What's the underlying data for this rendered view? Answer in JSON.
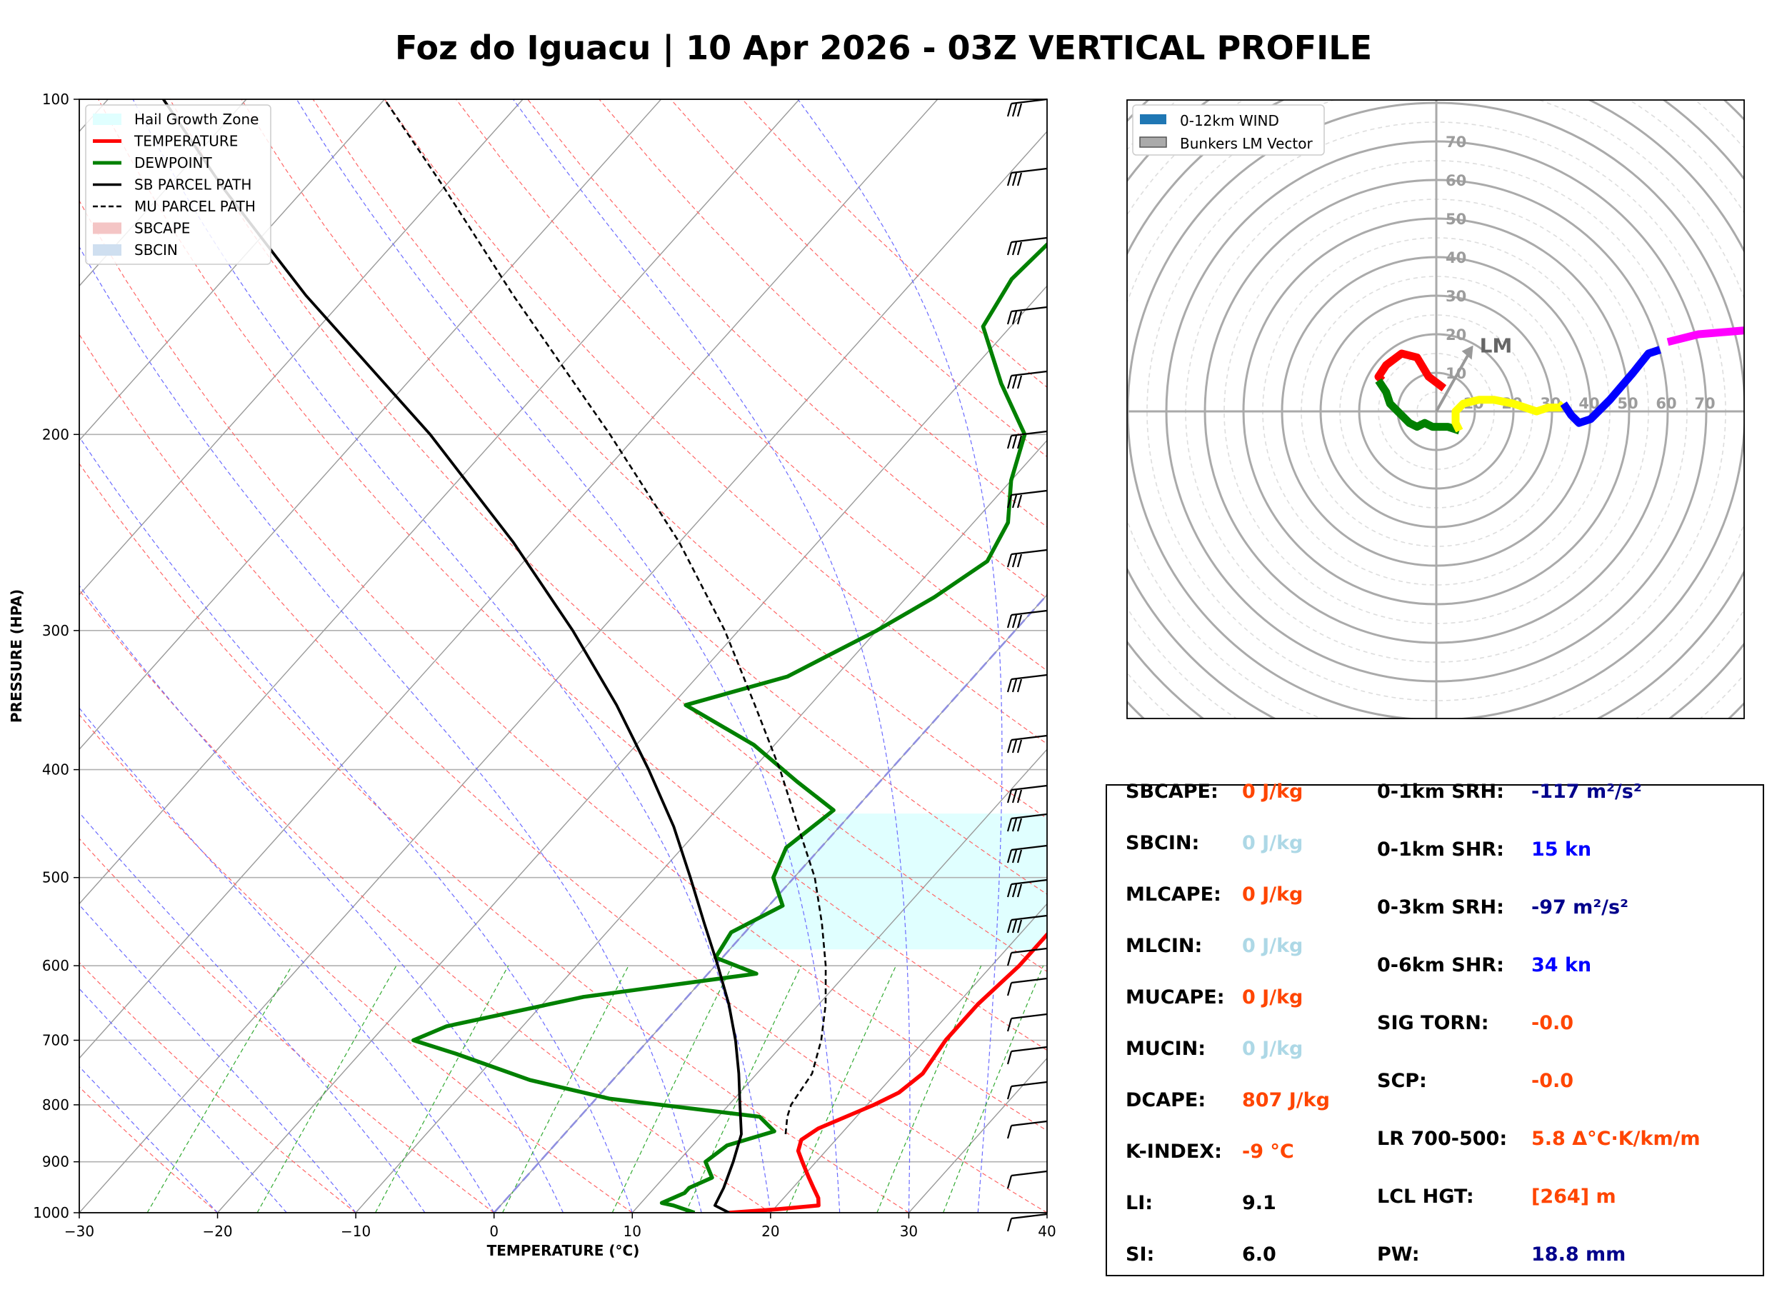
{
  "title": "Foz do Iguacu | 10 Apr 2026 - 03Z VERTICAL PROFILE",
  "colors": {
    "temperature": "#ff0000",
    "dewpoint": "#008000",
    "sb_parcel": "#000000",
    "mu_parcel": "#000000",
    "hail_zone": "#e0ffff",
    "dry_adiabat": "#ff6666",
    "moist_adiabat": "#6b6bff",
    "mixing_ratio": "#33aa33",
    "isotherm": "#9a9a9a",
    "freezing": "#8f8fe0",
    "stat_black": "#000000",
    "stat_orange": "#ff4500",
    "stat_lightblue": "#add8e6",
    "stat_navy": "#00008b",
    "stat_blue": "#0000ff"
  },
  "chart_data": [
    {
      "type": "line",
      "name": "skew-t",
      "xlabel": "TEMPERATURE (°C)",
      "ylabel": "PRESSURE (HPA)",
      "xlim": [
        -30,
        40
      ],
      "ylim": [
        1000,
        100
      ],
      "x_ticks": [
        "−30",
        "−20",
        "−10",
        "0",
        "10",
        "20",
        "30",
        "40"
      ],
      "y_ticks": [
        "100",
        "200",
        "300",
        "400",
        "500",
        "600",
        "700",
        "800",
        "900",
        "1000"
      ],
      "legend": [
        "Hail Growth Zone",
        "TEMPERATURE",
        "DEWPOINT",
        "SB PARCEL PATH",
        "MU PARCEL PATH",
        "SBCAPE",
        "SBCIN"
      ],
      "legend_position": "top-left",
      "hail_growth_zone": {
        "p_top": 438,
        "p_bottom": 580
      },
      "series": [
        {
          "name": "TEMPERATURE",
          "points": [
            [
              1000,
              17.0
            ],
            [
              993,
              20.2
            ],
            [
              985,
              23.0
            ],
            [
              970,
              22.5
            ],
            [
              950,
              21.5
            ],
            [
              930,
              20.5
            ],
            [
              900,
              19.0
            ],
            [
              880,
              18.0
            ],
            [
              860,
              17.5
            ],
            [
              840,
              18.0
            ],
            [
              800,
              20.5
            ],
            [
              780,
              21.5
            ],
            [
              750,
              22.0
            ],
            [
              700,
              21.5
            ],
            [
              650,
              21.5
            ],
            [
              600,
              22.0
            ],
            [
              560,
              22.0
            ],
            [
              530,
              20.5
            ],
            [
              490,
              18.5
            ],
            [
              460,
              17.5
            ],
            [
              430,
              16.0
            ],
            [
              410,
              15.5
            ],
            [
              380,
              14.5
            ],
            [
              350,
              14.0
            ],
            [
              320,
              14.0
            ],
            [
              300,
              13.5
            ],
            [
              260,
              13.0
            ],
            [
              230,
              12.5
            ],
            [
              200,
              12.0
            ],
            [
              180,
              11.0
            ],
            [
              160,
              10.0
            ],
            [
              140,
              8.0
            ],
            [
              120,
              5.0
            ],
            [
              100,
              0.5
            ]
          ]
        },
        {
          "name": "DEWPOINT",
          "points": [
            [
              1000,
              14.5
            ],
            [
              985,
              12.5
            ],
            [
              980,
              11.5
            ],
            [
              960,
              12.5
            ],
            [
              950,
              12.5
            ],
            [
              930,
              13.5
            ],
            [
              900,
              12.0
            ],
            [
              870,
              12.5
            ],
            [
              845,
              15.0
            ],
            [
              820,
              13.0
            ],
            [
              790,
              1.0
            ],
            [
              760,
              -6.0
            ],
            [
              720,
              -13.0
            ],
            [
              700,
              -17.0
            ],
            [
              680,
              -15.5
            ],
            [
              640,
              -7.5
            ],
            [
              610,
              3.5
            ],
            [
              590,
              -0.5
            ],
            [
              560,
              -1.0
            ],
            [
              530,
              1.0
            ],
            [
              500,
              -1.5
            ],
            [
              470,
              -2.5
            ],
            [
              435,
              -1.5
            ],
            [
              410,
              -6.0
            ],
            [
              380,
              -11.5
            ],
            [
              350,
              -19.0
            ],
            [
              330,
              -13.5
            ],
            [
              300,
              -10.0
            ],
            [
              280,
              -8.0
            ],
            [
              260,
              -6.5
            ],
            [
              240,
              -7.5
            ],
            [
              220,
              -10.0
            ],
            [
              200,
              -12.0
            ],
            [
              180,
              -17.0
            ],
            [
              160,
              -22.0
            ],
            [
              145,
              -23.0
            ],
            [
              130,
              -22.5
            ],
            [
              115,
              -21.5
            ],
            [
              100,
              -19.0
            ]
          ]
        },
        {
          "name": "SB PARCEL PATH",
          "points": [
            [
              1000,
              17.0
            ],
            [
              985,
              15.5
            ],
            [
              950,
              15.0
            ],
            [
              900,
              14.0
            ],
            [
              850,
              12.8
            ],
            [
              800,
              10.8
            ],
            [
              750,
              8.7
            ],
            [
              700,
              6.3
            ],
            [
              650,
              3.5
            ],
            [
              600,
              0.2
            ],
            [
              550,
              -3.5
            ],
            [
              500,
              -7.5
            ],
            [
              450,
              -12.0
            ],
            [
              400,
              -17.5
            ],
            [
              350,
              -24.0
            ],
            [
              300,
              -32.0
            ],
            [
              250,
              -42.0
            ],
            [
              200,
              -55.0
            ],
            [
              150,
              -73.0
            ],
            [
              120,
              -86.0
            ],
            [
              100,
              -96.0
            ]
          ]
        },
        {
          "name": "MU PARCEL PATH",
          "points": [
            [
              850,
              16.0
            ],
            [
              820,
              15.0
            ],
            [
              800,
              14.5
            ],
            [
              750,
              14.0
            ],
            [
              700,
              12.5
            ],
            [
              650,
              10.5
            ],
            [
              600,
              8.0
            ],
            [
              550,
              5.0
            ],
            [
              500,
              1.5
            ],
            [
              450,
              -3.0
            ],
            [
              400,
              -8.0
            ],
            [
              350,
              -14.0
            ],
            [
              300,
              -21.0
            ],
            [
              250,
              -30.0
            ],
            [
              200,
              -42.0
            ],
            [
              150,
              -58.0
            ],
            [
              120,
              -70.0
            ],
            [
              100,
              -80.0
            ]
          ]
        }
      ]
    },
    {
      "type": "scatter",
      "name": "hodograph",
      "legend": [
        "0-12km WIND",
        "Bunkers LM Vector"
      ],
      "legend_position": "top-left",
      "ring_labels": [
        "10",
        "20",
        "30",
        "40",
        "50",
        "60",
        "70"
      ],
      "lm_label": "LM",
      "bunkers_lm": [
        9.0,
        16.0
      ],
      "segments": [
        {
          "color": "#ff0000",
          "points": [
            [
              2,
              6
            ],
            [
              -2,
              9
            ],
            [
              -5,
              14
            ],
            [
              -9,
              15
            ],
            [
              -13,
              12
            ],
            [
              -15,
              9
            ],
            [
              -14,
              8
            ]
          ]
        },
        {
          "color": "#008000",
          "points": [
            [
              -15,
              8
            ],
            [
              -13,
              5
            ],
            [
              -12,
              2
            ],
            [
              -10,
              0
            ],
            [
              -7,
              -3
            ],
            [
              -5,
              -4
            ],
            [
              -3,
              -3
            ],
            [
              -1,
              -4
            ],
            [
              3,
              -4
            ],
            [
              6,
              -5
            ]
          ]
        },
        {
          "color": "#ffff00",
          "points": [
            [
              6,
              -5
            ],
            [
              5,
              -3
            ],
            [
              5,
              0
            ],
            [
              7,
              2
            ],
            [
              11,
              3
            ],
            [
              15,
              3
            ],
            [
              20,
              2
            ],
            [
              23,
              1
            ],
            [
              26,
              0
            ],
            [
              29,
              1
            ],
            [
              32,
              1
            ],
            [
              33,
              2
            ]
          ]
        },
        {
          "color": "#0000ff",
          "points": [
            [
              33,
              2
            ],
            [
              35,
              -1
            ],
            [
              37,
              -3
            ],
            [
              40,
              -2
            ],
            [
              45,
              3
            ],
            [
              51,
              10
            ],
            [
              55,
              15
            ],
            [
              58,
              16
            ]
          ]
        },
        {
          "color": "#ff00ff",
          "points": [
            [
              60,
              18
            ],
            [
              68,
              20
            ],
            [
              80,
              21
            ]
          ]
        }
      ]
    }
  ],
  "stats": {
    "left": [
      {
        "label": "SBCAPE:",
        "value": "0 J/kg",
        "color": "#ff4500"
      },
      {
        "label": "SBCIN:",
        "value": "0 J/kg",
        "color": "#add8e6"
      },
      {
        "label": "MLCAPE:",
        "value": "0 J/kg",
        "color": "#ff4500"
      },
      {
        "label": "MLCIN:",
        "value": "0 J/kg",
        "color": "#add8e6"
      },
      {
        "label": "MUCAPE:",
        "value": "0 J/kg",
        "color": "#ff4500"
      },
      {
        "label": "MUCIN:",
        "value": "0 J/kg",
        "color": "#add8e6"
      },
      {
        "label": "DCAPE:",
        "value": "807 J/kg",
        "color": "#ff4500"
      },
      {
        "label": "K-INDEX:",
        "value": "-9 °C",
        "color": "#ff4500"
      },
      {
        "label": "LI:",
        "value": "9.1",
        "color": "#000000"
      },
      {
        "label": "SI:",
        "value": "6.0",
        "color": "#000000"
      }
    ],
    "right": [
      {
        "label": "0-1km SRH:",
        "value": "-117 m²/s²",
        "color": "#00008b"
      },
      {
        "label": "0-1km SHR:",
        "value": "15 kn",
        "color": "#0000ff"
      },
      {
        "label": "0-3km SRH:",
        "value": "-97 m²/s²",
        "color": "#00008b"
      },
      {
        "label": "0-6km SHR:",
        "value": "34 kn",
        "color": "#0000ff"
      },
      {
        "label": "SIG TORN:",
        "value": "-0.0",
        "color": "#ff4500"
      },
      {
        "label": "SCP:",
        "value": "-0.0",
        "color": "#ff4500"
      },
      {
        "label": "LR 700-500:",
        "value": "5.8 Δ°C·K/km/m",
        "color": "#ff4500"
      },
      {
        "label": "LCL HGT:",
        "value": "[264] m",
        "color": "#ff4500"
      },
      {
        "label": "PW:",
        "value": "18.8 mm",
        "color": "#00008b"
      }
    ]
  }
}
